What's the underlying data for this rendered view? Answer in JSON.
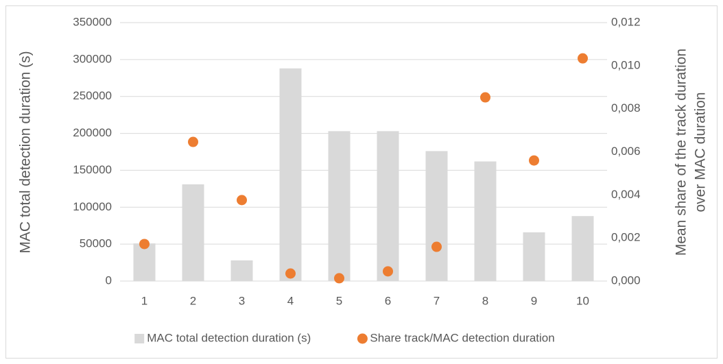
{
  "chart_data": {
    "type": "bar+scatter",
    "categories": [
      "1",
      "2",
      "3",
      "4",
      "5",
      "6",
      "7",
      "8",
      "9",
      "10"
    ],
    "ylabel": "MAC total detection duration (s)",
    "y2label": [
      "Mean share of the track duration",
      "over MAC duration"
    ],
    "ylim": [
      0,
      350000
    ],
    "yticks": [
      0,
      50000,
      100000,
      150000,
      200000,
      250000,
      300000,
      350000
    ],
    "y2lim": [
      0,
      0.012
    ],
    "y2ticks": [
      {
        "value": 0,
        "label": "0,000"
      },
      {
        "value": 0.002,
        "label": "0,002"
      },
      {
        "value": 0.004,
        "label": "0,004"
      },
      {
        "value": 0.006,
        "label": "0,006"
      },
      {
        "value": 0.008,
        "label": "0,008"
      },
      {
        "value": 0.01,
        "label": "0,010"
      },
      {
        "value": 0.012,
        "label": "0,012"
      }
    ],
    "grid": true,
    "legend": "bottom",
    "series": [
      {
        "name": "MAC total detection duration (s)",
        "type": "bar",
        "color": "#d9d9d9",
        "values": [
          51000,
          131000,
          28000,
          288000,
          203000,
          203000,
          176000,
          162000,
          66000,
          88000
        ]
      },
      {
        "name": "Share track/MAC detection duration",
        "type": "scatter",
        "axis": "y2",
        "color": "#ed7d31",
        "values": [
          0.00172,
          0.00646,
          0.00376,
          0.00035,
          0.00013,
          0.00045,
          0.00159,
          0.00853,
          0.0056,
          0.01034
        ]
      }
    ]
  }
}
